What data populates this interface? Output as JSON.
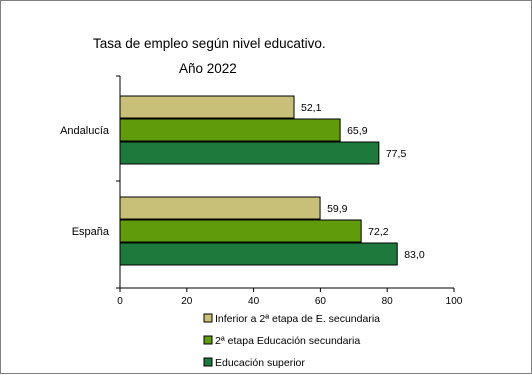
{
  "chart_data": {
    "type": "bar",
    "orientation": "horizontal",
    "title": "Tasa de empleo según nivel educativo.",
    "subtitle": "Año 2022",
    "categories": [
      "Andalucía",
      "España"
    ],
    "series": [
      {
        "name": "Inferior a 2ª etapa de E. secundaria",
        "color": "#c8c078",
        "values": [
          52.1,
          59.9
        ],
        "labels": [
          "52,1",
          "59,9"
        ]
      },
      {
        "name": "2ª etapa Educación secundaria",
        "color": "#5f9b0a",
        "values": [
          65.9,
          72.2
        ],
        "labels": [
          "65,9",
          "72,2"
        ]
      },
      {
        "name": "Educación superior",
        "color": "#1e7a3c",
        "values": [
          77.5,
          83.0
        ],
        "labels": [
          "77,5",
          "83,0"
        ]
      }
    ],
    "xlim": [
      0,
      100
    ],
    "xticks": [
      0,
      20,
      40,
      60,
      80,
      100
    ],
    "xtick_labels": [
      "0",
      "20",
      "40",
      "60",
      "80",
      "100"
    ],
    "grid": false,
    "legend_position": "bottom"
  }
}
